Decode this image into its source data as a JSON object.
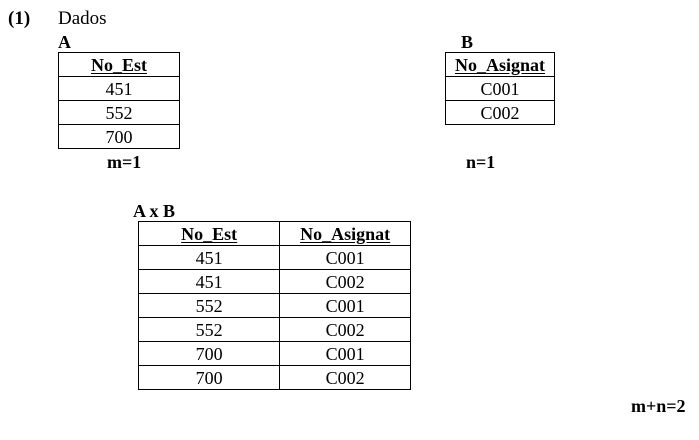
{
  "item_number": "(1)",
  "intro_text": "Dados",
  "relation_a": {
    "name": "A",
    "columns": [
      "No_Est"
    ],
    "rows": [
      [
        "451"
      ],
      [
        "552"
      ],
      [
        "700"
      ]
    ],
    "cardinality": "m=1"
  },
  "relation_b": {
    "name": "B",
    "columns": [
      "No_Asignat"
    ],
    "rows": [
      [
        "C001"
      ],
      [
        "C002"
      ]
    ],
    "cardinality": "n=1"
  },
  "product": {
    "name": "A x B",
    "columns": [
      "No_Est",
      "No_Asignat"
    ],
    "rows": [
      [
        "451",
        "C001"
      ],
      [
        "451",
        "C002"
      ],
      [
        "552",
        "C001"
      ],
      [
        "552",
        "C002"
      ],
      [
        "700",
        "C001"
      ],
      [
        "700",
        "C002"
      ]
    ],
    "cardinality": "m+n=2"
  }
}
